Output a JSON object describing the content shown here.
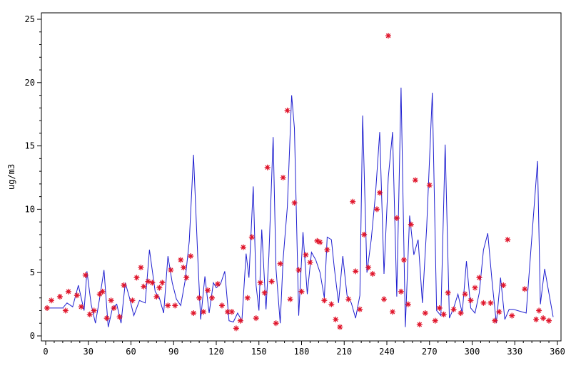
{
  "chart_data": {
    "type": "line",
    "title": "",
    "xlabel": "",
    "ylabel": "ug/m3",
    "xlim": [
      0,
      360
    ],
    "ylim": [
      0,
      25
    ],
    "xticks": [
      0,
      30,
      60,
      90,
      120,
      150,
      180,
      210,
      240,
      270,
      300,
      330,
      360
    ],
    "yticks": [
      0,
      5,
      10,
      15,
      20,
      25
    ],
    "grid": false,
    "legend": "none",
    "series": [
      {
        "kind": "line",
        "color": "#1f1fd0",
        "x": [
          1,
          8,
          12,
          15,
          19,
          23,
          27,
          29,
          32,
          35,
          38,
          41,
          44,
          47,
          50,
          53,
          56,
          59,
          62,
          66,
          70,
          73,
          77,
          80,
          83,
          86,
          89,
          92,
          95,
          98,
          101,
          104,
          107,
          109,
          112,
          115,
          118,
          120,
          123,
          126,
          129,
          132,
          135,
          138,
          141,
          143,
          146,
          148,
          150,
          152,
          155,
          157,
          160,
          162,
          165,
          167,
          170,
          173,
          175,
          178,
          181,
          184,
          187,
          190,
          193,
          196,
          198,
          201,
          203,
          206,
          209,
          212,
          215,
          218,
          221,
          223,
          226,
          229,
          232,
          235,
          238,
          241,
          244,
          247,
          250,
          253,
          256,
          259,
          262,
          265,
          268,
          272,
          275,
          278,
          281,
          284,
          287,
          290,
          293,
          296,
          299,
          302,
          305,
          308,
          311,
          314,
          317,
          320,
          323,
          326,
          329,
          332,
          338,
          346,
          348,
          351,
          353,
          357
        ],
        "y": [
          2.2,
          2.2,
          2.2,
          2.6,
          2.3,
          4.0,
          2.0,
          5.1,
          2.5,
          1.0,
          3.0,
          5.2,
          0.7,
          2.2,
          2.5,
          1.0,
          4.2,
          3.0,
          1.6,
          2.8,
          2.6,
          6.8,
          3.5,
          3.0,
          1.8,
          6.3,
          4.2,
          2.9,
          2.4,
          4.3,
          7.5,
          14.3,
          6.2,
          1.3,
          4.7,
          1.8,
          4.2,
          3.8,
          4.1,
          5.1,
          1.2,
          1.1,
          1.8,
          1.2,
          6.5,
          4.6,
          11.8,
          4.0,
          2.0,
          8.4,
          2.1,
          6.3,
          15.7,
          5.3,
          1.0,
          6.0,
          10.2,
          19.0,
          16.4,
          1.6,
          8.2,
          3.3,
          6.6,
          6.0,
          5.0,
          3.0,
          7.8,
          7.6,
          5.4,
          2.6,
          6.3,
          3.2,
          2.6,
          1.4,
          3.2,
          17.4,
          5.0,
          7.6,
          11.2,
          16.1,
          4.9,
          12.5,
          16.1,
          3.1,
          19.6,
          0.7,
          9.5,
          6.4,
          7.6,
          2.6,
          8.6,
          19.2,
          2.0,
          1.6,
          15.1,
          1.4,
          2.2,
          3.3,
          1.8,
          5.9,
          2.2,
          1.8,
          3.4,
          6.8,
          8.1,
          4.3,
          1.0,
          4.6,
          1.3,
          2.1,
          2.1,
          2.0,
          1.8,
          13.8,
          2.5,
          5.3,
          4.0,
          1.5
        ]
      },
      {
        "kind": "scatter",
        "color": "#e0142a",
        "marker": "*",
        "x": [
          1,
          4,
          10,
          14,
          16,
          22,
          25,
          28,
          31,
          34,
          38,
          40,
          43,
          46,
          48,
          52,
          55,
          61,
          64,
          67,
          69,
          72,
          75,
          78,
          80,
          82,
          86,
          88,
          91,
          95,
          97,
          99,
          102,
          104,
          108,
          111,
          114,
          117,
          121,
          124,
          128,
          131,
          134,
          137,
          139,
          142,
          145,
          148,
          151,
          154,
          156,
          159,
          162,
          165,
          167,
          170,
          172,
          175,
          178,
          180,
          183,
          186,
          191,
          193,
          196,
          198,
          201,
          204,
          207,
          213,
          216,
          218,
          221,
          224,
          227,
          230,
          233,
          235,
          238,
          241,
          244,
          247,
          250,
          252,
          255,
          257,
          260,
          263,
          267,
          270,
          274,
          277,
          280,
          283,
          287,
          292,
          295,
          299,
          302,
          305,
          308,
          313,
          316,
          319,
          322,
          325,
          328,
          337,
          345,
          347,
          350,
          354
        ],
        "y": [
          2.2,
          2.8,
          3.1,
          2.0,
          3.5,
          3.2,
          2.3,
          4.8,
          1.7,
          2.0,
          3.3,
          3.5,
          1.4,
          2.8,
          2.2,
          1.5,
          4.0,
          2.8,
          4.6,
          5.4,
          3.9,
          4.3,
          4.2,
          3.1,
          3.8,
          4.2,
          2.4,
          5.2,
          2.4,
          6.0,
          5.4,
          4.6,
          6.3,
          1.8,
          3.0,
          1.9,
          3.6,
          3.0,
          4.1,
          2.4,
          1.9,
          1.9,
          0.6,
          1.2,
          7.0,
          3.0,
          7.8,
          1.4,
          4.2,
          3.4,
          13.3,
          4.3,
          1.0,
          5.7,
          12.5,
          17.8,
          2.9,
          10.5,
          5.2,
          3.5,
          6.4,
          5.8,
          7.5,
          7.4,
          2.8,
          6.8,
          2.5,
          1.3,
          0.7,
          2.9,
          10.6,
          5.1,
          2.1,
          8.0,
          5.4,
          4.9,
          10.0,
          11.3,
          2.9,
          23.7,
          1.9,
          9.3,
          3.5,
          6.0,
          2.5,
          8.8,
          12.3,
          0.9,
          1.8,
          11.9,
          1.2,
          2.2,
          1.7,
          3.4,
          2.1,
          1.8,
          3.3,
          2.8,
          3.8,
          4.6,
          2.6,
          2.6,
          1.2,
          1.9,
          4.0,
          7.6,
          1.6,
          3.7,
          1.3,
          2.0,
          1.4,
          1.2
        ]
      }
    ]
  }
}
